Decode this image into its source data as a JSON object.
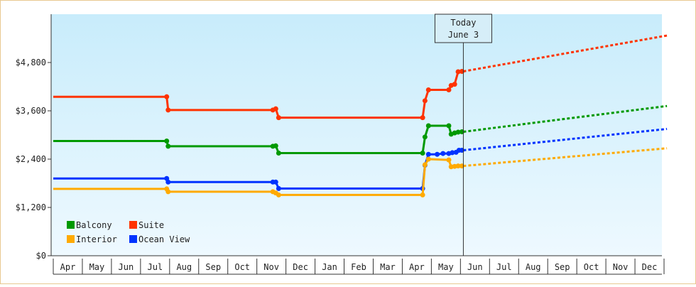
{
  "chart_data": {
    "type": "line",
    "title": "",
    "xlabel": "",
    "ylabel": "",
    "ylim": [
      0,
      6000
    ],
    "y_ticks": [
      "$0",
      "$1,200",
      "$2,400",
      "$3,600",
      "$4,800"
    ],
    "y_tick_values": [
      0,
      1200,
      2400,
      3600,
      4800
    ],
    "x_ticks": [
      "Apr",
      "May",
      "Jun",
      "Jul",
      "Aug",
      "Sep",
      "Oct",
      "Nov",
      "Dec",
      "Jan",
      "Feb",
      "Mar",
      "Apr",
      "May",
      "Jun",
      "Jul",
      "Aug",
      "Sep",
      "Oct",
      "Nov",
      "Dec"
    ],
    "x_range_months": [
      0,
      21
    ],
    "today_marker": {
      "line1": "Today",
      "line2": "June 3",
      "x": 14.1
    },
    "grid": false,
    "legend_placement": "bottom-left",
    "series": [
      {
        "name": "Suite",
        "color": "#ff3300",
        "points": [
          [
            0,
            3950
          ],
          [
            3.9,
            3950
          ],
          [
            3.95,
            3620
          ],
          [
            7.55,
            3620
          ],
          [
            7.65,
            3650
          ],
          [
            7.75,
            3430
          ],
          [
            12.7,
            3430
          ],
          [
            12.78,
            3850
          ],
          [
            12.9,
            4120
          ],
          [
            13.6,
            4120
          ],
          [
            13.68,
            4230
          ],
          [
            13.8,
            4260
          ],
          [
            13.92,
            4570
          ],
          [
            14.05,
            4580
          ]
        ],
        "forecast": [
          [
            14.1,
            4580
          ],
          [
            21.1,
            5470
          ]
        ]
      },
      {
        "name": "Balcony",
        "color": "#009900",
        "points": [
          [
            0,
            2850
          ],
          [
            3.9,
            2850
          ],
          [
            3.95,
            2720
          ],
          [
            7.55,
            2720
          ],
          [
            7.65,
            2730
          ],
          [
            7.75,
            2550
          ],
          [
            12.7,
            2550
          ],
          [
            12.78,
            2950
          ],
          [
            12.9,
            3230
          ],
          [
            13.6,
            3230
          ],
          [
            13.68,
            3020
          ],
          [
            13.8,
            3050
          ],
          [
            13.92,
            3070
          ],
          [
            14.05,
            3080
          ]
        ],
        "forecast": [
          [
            14.1,
            3080
          ],
          [
            21.1,
            3720
          ]
        ]
      },
      {
        "name": "Ocean View",
        "color": "#0033ff",
        "points": [
          [
            0,
            1920
          ],
          [
            3.9,
            1920
          ],
          [
            3.95,
            1830
          ],
          [
            7.55,
            1830
          ],
          [
            7.65,
            1830
          ],
          [
            7.75,
            1670
          ],
          [
            12.7,
            1670
          ],
          [
            12.78,
            2250
          ],
          [
            12.9,
            2520
          ],
          [
            13.2,
            2520
          ],
          [
            13.4,
            2540
          ],
          [
            13.6,
            2540
          ],
          [
            13.72,
            2560
          ],
          [
            13.85,
            2570
          ],
          [
            13.95,
            2620
          ],
          [
            14.05,
            2620
          ]
        ],
        "forecast": [
          [
            14.1,
            2620
          ],
          [
            21.1,
            3150
          ]
        ]
      },
      {
        "name": "Interior",
        "color": "#ffaa00",
        "points": [
          [
            0,
            1660
          ],
          [
            3.9,
            1660
          ],
          [
            3.95,
            1590
          ],
          [
            7.55,
            1590
          ],
          [
            7.65,
            1560
          ],
          [
            7.75,
            1510
          ],
          [
            12.7,
            1510
          ],
          [
            12.78,
            2260
          ],
          [
            12.9,
            2400
          ],
          [
            13.6,
            2380
          ],
          [
            13.68,
            2210
          ],
          [
            13.8,
            2220
          ],
          [
            13.92,
            2230
          ],
          [
            14.05,
            2230
          ]
        ],
        "forecast": [
          [
            14.1,
            2230
          ],
          [
            21.1,
            2670
          ]
        ]
      }
    ],
    "legend": [
      {
        "name": "Balcony",
        "color": "#009900"
      },
      {
        "name": "Suite",
        "color": "#ff3300"
      },
      {
        "name": "Interior",
        "color": "#ffaa00"
      },
      {
        "name": "Ocean View",
        "color": "#0033ff"
      }
    ]
  }
}
